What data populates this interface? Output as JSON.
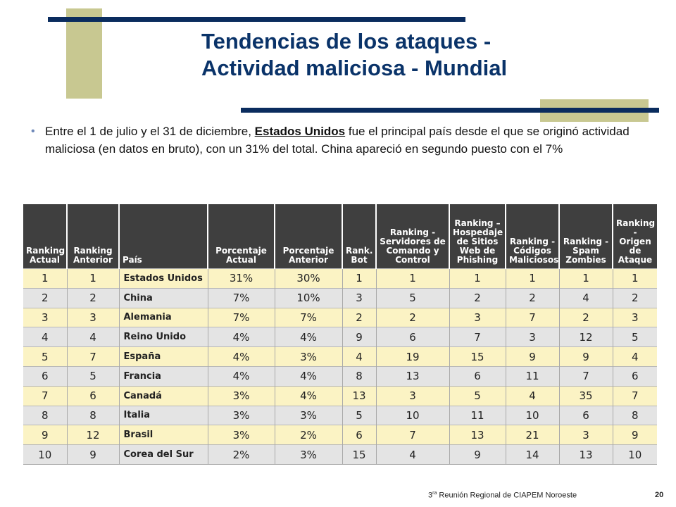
{
  "title": {
    "line1": "Tendencias de los ataques -",
    "line2": "Actividad maliciosa - Mundial"
  },
  "bullet": {
    "before": "Entre el 1 de julio y el 31 de diciembre, ",
    "highlight": "Estados Unidos",
    "after": " fue el principal país desde el que se originó actividad maliciosa (en datos en bruto), con un 31% del total. China apareció en segundo puesto con el 7%"
  },
  "table": {
    "headers": [
      "Ranking Actual",
      "Ranking Anterior",
      "País",
      "Porcentaje Actual",
      "Porcentaje Anterior",
      "Rank. Bot",
      "Ranking - Servidores de Comando y Control",
      "Ranking – Hospedaje de Sitios Web de Phishing",
      "Ranking - Códigos Maliciosos",
      "Ranking - Spam Zombies",
      "Ranking - Origen de Ataque"
    ],
    "rows": [
      [
        "1",
        "1",
        "Estados Unidos",
        "31%",
        "30%",
        "1",
        "1",
        "1",
        "1",
        "1",
        "1"
      ],
      [
        "2",
        "2",
        "China",
        "7%",
        "10%",
        "3",
        "5",
        "2",
        "2",
        "4",
        "2"
      ],
      [
        "3",
        "3",
        "Alemania",
        "7%",
        "7%",
        "2",
        "2",
        "3",
        "7",
        "2",
        "3"
      ],
      [
        "4",
        "4",
        "Reino Unido",
        "4%",
        "4%",
        "9",
        "6",
        "7",
        "3",
        "12",
        "5"
      ],
      [
        "5",
        "7",
        "España",
        "4%",
        "3%",
        "4",
        "19",
        "15",
        "9",
        "9",
        "4"
      ],
      [
        "6",
        "5",
        "Francia",
        "4%",
        "4%",
        "8",
        "13",
        "6",
        "11",
        "7",
        "6"
      ],
      [
        "7",
        "6",
        "Canadá",
        "3%",
        "4%",
        "13",
        "3",
        "5",
        "4",
        "35",
        "7"
      ],
      [
        "8",
        "8",
        "Italia",
        "3%",
        "3%",
        "5",
        "10",
        "11",
        "10",
        "6",
        "8"
      ],
      [
        "9",
        "12",
        "Brasil",
        "3%",
        "2%",
        "6",
        "7",
        "13",
        "21",
        "3",
        "9"
      ],
      [
        "10",
        "9",
        "Corea del Sur",
        "2%",
        "3%",
        "15",
        "4",
        "9",
        "14",
        "13",
        "10"
      ]
    ]
  },
  "footer": {
    "num": "3",
    "sup": "ra",
    "text": " Reunión Regional  de CIAPEM Noroeste"
  },
  "page_number": "20",
  "colors": {
    "title": "#0a3369",
    "navy_bar": "#0a2c5e",
    "olive_block": "#c8c891",
    "header_bg": "#3f3f3f",
    "row_odd": "#fbf3c4",
    "row_even": "#e4e4e4"
  }
}
